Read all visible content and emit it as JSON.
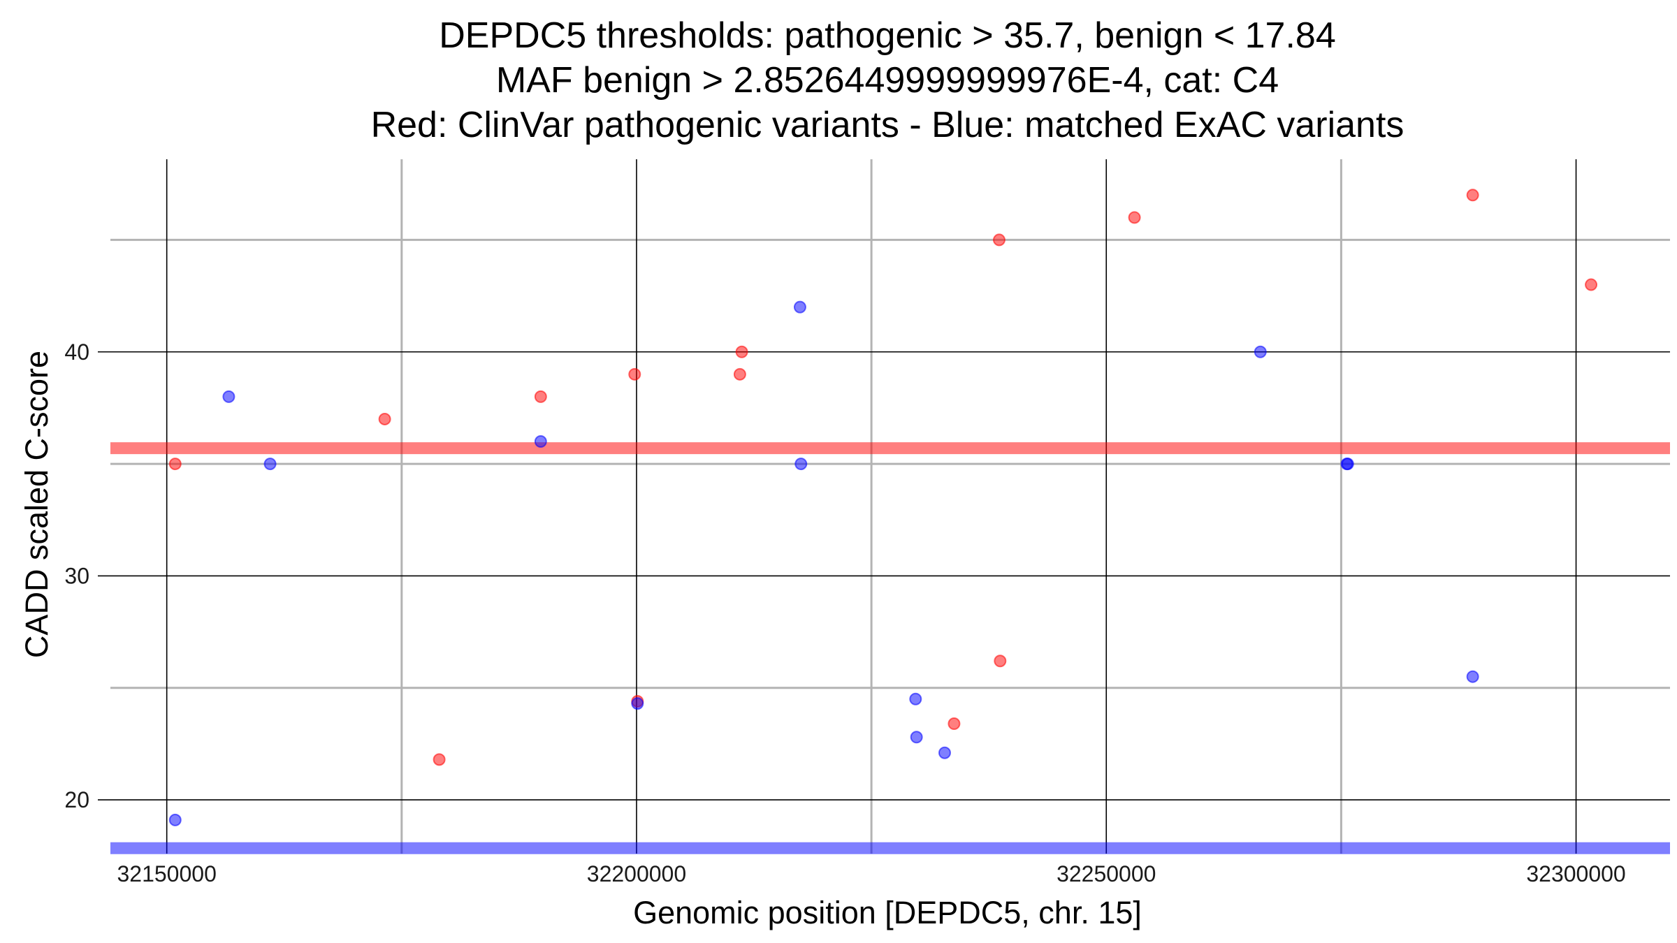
{
  "chart_data": {
    "type": "scatter",
    "title_lines": [
      "DEPDC5 thresholds: pathogenic > 35.7, benign < 17.84",
      "MAF benign > 2.8526449999999976E-4, cat: C4",
      "Red: ClinVar pathogenic variants - Blue: matched ExAC variants"
    ],
    "xlabel": "Genomic position [DEPDC5, chr. 15]",
    "ylabel": "CADD scaled C-score",
    "xlim": [
      32144000,
      32310000
    ],
    "ylim": [
      17.6,
      48.6
    ],
    "x_major_ticks": [
      32150000,
      32200000,
      32250000,
      32300000
    ],
    "x_tick_labels": [
      "32150000",
      "32200000",
      "32250000",
      "32300000"
    ],
    "x_minor_grid": [
      32175000,
      32225000,
      32275000
    ],
    "y_major_ticks": [
      20,
      30,
      40
    ],
    "y_tick_labels": [
      "20",
      "30",
      "40"
    ],
    "y_minor_grid": [
      25,
      35,
      45
    ],
    "grid": true,
    "colors": {
      "pathogenic": "#ff0000",
      "benign": "#0000ff",
      "major_grid": "#000000",
      "minor_grid": "#b3b3b3"
    },
    "thresholds": [
      {
        "value": 35.7,
        "color": "#ff0000"
      },
      {
        "value": 17.84,
        "color": "#0000ff"
      }
    ],
    "series": [
      {
        "color": "#ff0000",
        "x": [
          32150900,
          32173200,
          32179000,
          32189800,
          32199800,
          32200100,
          32211000,
          32211200,
          32238600,
          32238700,
          32233800,
          32253000,
          32289000,
          32301600
        ],
        "y": [
          35,
          37,
          21.8,
          38,
          39,
          24.4,
          39,
          40,
          45,
          26.2,
          23.4,
          46,
          47,
          43
        ]
      },
      {
        "color": "#0000ff",
        "x": [
          32150900,
          32156600,
          32161000,
          32189800,
          32200100,
          32217400,
          32217500,
          32229700,
          32229800,
          32232800,
          32266400,
          32275600,
          32275700,
          32289000
        ],
        "y": [
          19.1,
          38,
          35,
          36,
          24.3,
          42,
          35,
          24.5,
          22.8,
          22.1,
          40,
          35,
          35,
          25.5
        ]
      }
    ]
  }
}
